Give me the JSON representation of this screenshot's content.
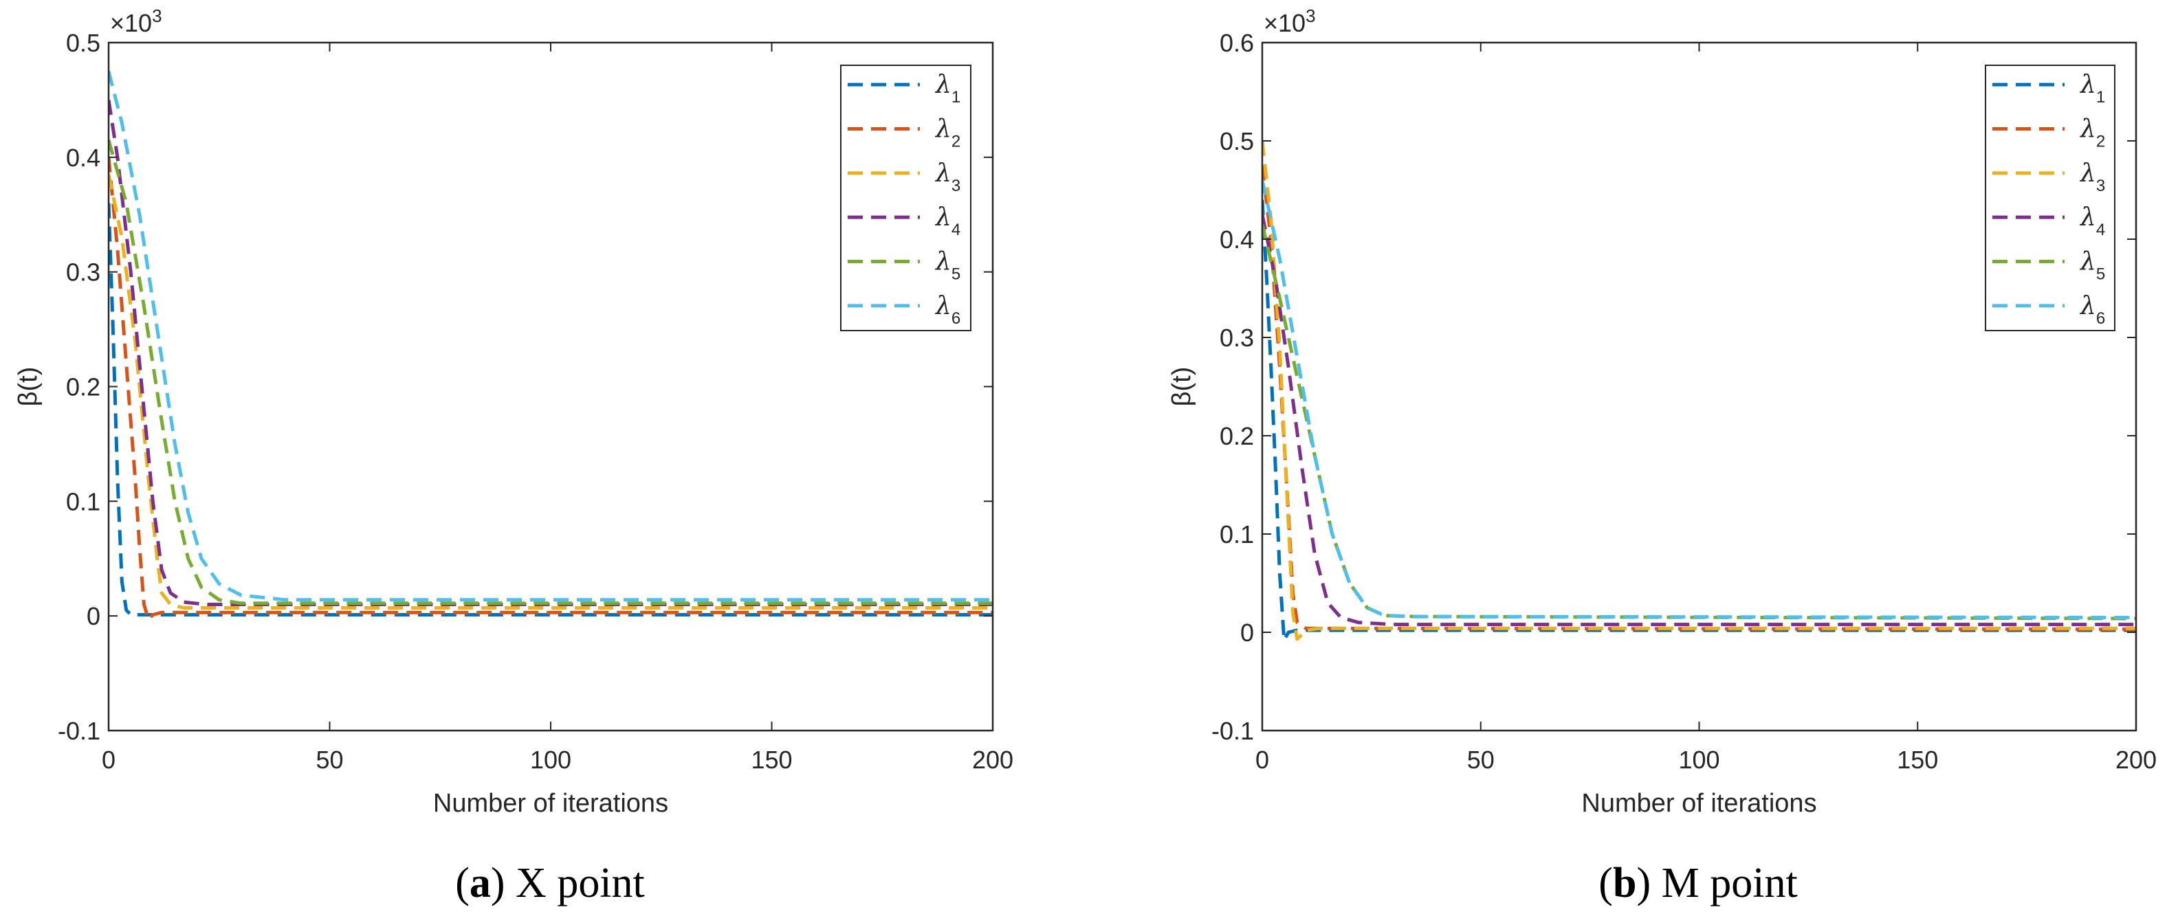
{
  "colors": [
    "#0072BD",
    "#D95319",
    "#EDB120",
    "#7E2F8E",
    "#77AC30",
    "#4DBEEE"
  ],
  "chart_data": [
    {
      "type": "line",
      "caption_label": "a",
      "caption_text": "X point",
      "xlabel": "Number of iterations",
      "ylabel": "β(t)",
      "y_multiplier_base": "×10",
      "y_multiplier_exp": "3",
      "xlim": [
        0,
        200
      ],
      "ylim": [
        -0.1,
        0.5
      ],
      "xticks": [
        "0",
        "50",
        "100",
        "150",
        "200"
      ],
      "yticks": [
        "-0.1",
        "0",
        "0.1",
        "0.2",
        "0.3",
        "0.4",
        "0.5"
      ],
      "legend_position": "top-right",
      "line_style": "dashed",
      "series": [
        {
          "name": "λ",
          "sub": "1",
          "points": [
            [
              0,
              0.36
            ],
            [
              1,
              0.25
            ],
            [
              2,
              0.12
            ],
            [
              3,
              0.03
            ],
            [
              4,
              0.005
            ],
            [
              5,
              0.001
            ],
            [
              200,
              0.001
            ]
          ]
        },
        {
          "name": "λ",
          "sub": "2",
          "points": [
            [
              0,
              0.4
            ],
            [
              2,
              0.32
            ],
            [
              4,
              0.22
            ],
            [
              6,
              0.12
            ],
            [
              7,
              0.06
            ],
            [
              8,
              0.01
            ],
            [
              9,
              -0.003
            ],
            [
              10,
              0.001
            ],
            [
              12,
              0.003
            ],
            [
              200,
              0.003
            ]
          ]
        },
        {
          "name": "λ",
          "sub": "3",
          "points": [
            [
              0,
              0.385
            ],
            [
              3,
              0.33
            ],
            [
              6,
              0.24
            ],
            [
              9,
              0.12
            ],
            [
              11,
              0.05
            ],
            [
              12,
              0.02
            ],
            [
              14,
              0.01
            ],
            [
              17,
              0.007
            ],
            [
              200,
              0.007
            ]
          ]
        },
        {
          "name": "λ",
          "sub": "4",
          "points": [
            [
              0,
              0.45
            ],
            [
              2,
              0.4
            ],
            [
              5,
              0.3
            ],
            [
              8,
              0.18
            ],
            [
              10,
              0.1
            ],
            [
              12,
              0.04
            ],
            [
              14,
              0.02
            ],
            [
              17,
              0.012
            ],
            [
              22,
              0.01
            ],
            [
              200,
              0.01
            ]
          ]
        },
        {
          "name": "λ",
          "sub": "5",
          "points": [
            [
              0,
              0.415
            ],
            [
              4,
              0.36
            ],
            [
              8,
              0.27
            ],
            [
              12,
              0.17
            ],
            [
              15,
              0.1
            ],
            [
              18,
              0.05
            ],
            [
              21,
              0.025
            ],
            [
              25,
              0.014
            ],
            [
              30,
              0.011
            ],
            [
              200,
              0.011
            ]
          ]
        },
        {
          "name": "λ",
          "sub": "6",
          "points": [
            [
              0,
              0.475
            ],
            [
              3,
              0.43
            ],
            [
              7,
              0.35
            ],
            [
              11,
              0.25
            ],
            [
              15,
              0.15
            ],
            [
              18,
              0.09
            ],
            [
              21,
              0.05
            ],
            [
              25,
              0.028
            ],
            [
              30,
              0.018
            ],
            [
              40,
              0.014
            ],
            [
              200,
              0.014
            ]
          ]
        }
      ]
    },
    {
      "type": "line",
      "caption_label": "b",
      "caption_text": "M point",
      "xlabel": "Number of iterations",
      "ylabel": "β(t)",
      "y_multiplier_base": "×10",
      "y_multiplier_exp": "3",
      "xlim": [
        0,
        200
      ],
      "ylim": [
        -0.1,
        0.6
      ],
      "xticks": [
        "0",
        "50",
        "100",
        "150",
        "200"
      ],
      "yticks": [
        "-0.1",
        "0",
        "0.1",
        "0.2",
        "0.3",
        "0.4",
        "0.5",
        "0.6"
      ],
      "legend_position": "top-right",
      "line_style": "dashed",
      "series": [
        {
          "name": "λ",
          "sub": "1",
          "points": [
            [
              0,
              0.44
            ],
            [
              1,
              0.36
            ],
            [
              2,
              0.27
            ],
            [
              3,
              0.17
            ],
            [
              4,
              0.06
            ],
            [
              5,
              -0.008
            ],
            [
              6,
              0.0
            ],
            [
              8,
              0.002
            ],
            [
              200,
              0.002
            ]
          ]
        },
        {
          "name": "λ",
          "sub": "2",
          "points": [
            [
              0,
              0.475
            ],
            [
              2,
              0.4
            ],
            [
              4,
              0.27
            ],
            [
              6,
              0.12
            ],
            [
              7,
              0.04
            ],
            [
              8,
              0.01
            ],
            [
              10,
              0.004
            ],
            [
              200,
              0.003
            ]
          ]
        },
        {
          "name": "λ",
          "sub": "3",
          "points": [
            [
              0,
              0.5
            ],
            [
              2,
              0.42
            ],
            [
              4,
              0.29
            ],
            [
              6,
              0.11
            ],
            [
              7,
              0.02
            ],
            [
              8,
              -0.007
            ],
            [
              10,
              0.002
            ],
            [
              13,
              0.004
            ],
            [
              200,
              0.004
            ]
          ]
        },
        {
          "name": "λ",
          "sub": "4",
          "points": [
            [
              0,
              0.425
            ],
            [
              3,
              0.36
            ],
            [
              6,
              0.27
            ],
            [
              9,
              0.17
            ],
            [
              12,
              0.08
            ],
            [
              15,
              0.03
            ],
            [
              18,
              0.015
            ],
            [
              22,
              0.01
            ],
            [
              30,
              0.008
            ],
            [
              200,
              0.008
            ]
          ]
        },
        {
          "name": "λ",
          "sub": "5",
          "points": [
            [
              0,
              0.415
            ],
            [
              4,
              0.34
            ],
            [
              8,
              0.26
            ],
            [
              12,
              0.18
            ],
            [
              16,
              0.1
            ],
            [
              20,
              0.05
            ],
            [
              24,
              0.025
            ],
            [
              28,
              0.017
            ],
            [
              35,
              0.016
            ],
            [
              200,
              0.014
            ]
          ]
        },
        {
          "name": "λ",
          "sub": "6",
          "points": [
            [
              0,
              0.46
            ],
            [
              4,
              0.38
            ],
            [
              8,
              0.28
            ],
            [
              12,
              0.18
            ],
            [
              16,
              0.1
            ],
            [
              20,
              0.05
            ],
            [
              24,
              0.025
            ],
            [
              28,
              0.017
            ],
            [
              35,
              0.016
            ],
            [
              200,
              0.015
            ]
          ]
        }
      ]
    }
  ]
}
